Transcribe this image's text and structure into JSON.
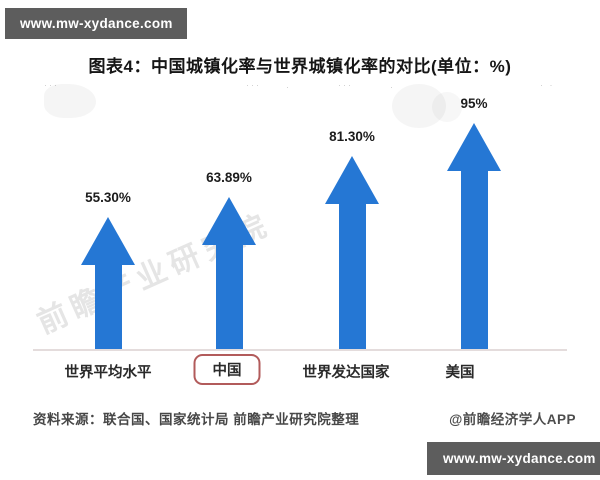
{
  "banners": {
    "top_text": "www.mw-xydance.com",
    "bottom_text": "www.mw-xydance.com",
    "bg_color": "#5d5d5d"
  },
  "title": "图表4：中国城镇化率与世界城镇化率的对比(单位：%)",
  "chart_data": {
    "type": "bar",
    "variant": "upward-arrow-pictogram",
    "title": "图表4：中国城镇化率与世界城镇化率的对比(单位：%)",
    "unit": "%",
    "categories": [
      "世界平均水平",
      "中国",
      "世界发达国家",
      "美国"
    ],
    "values": [
      55.3,
      63.89,
      81.3,
      95
    ],
    "value_labels": [
      "55.30%",
      "63.89%",
      "81.30%",
      "95%"
    ],
    "highlighted_category": "中国",
    "highlight_box_color": "#b25b5b",
    "bar_color": "#2577d4",
    "ylim": [
      0,
      100
    ],
    "grid": false,
    "legend": "none"
  },
  "watermark": {
    "diagonal_text": "前瞻产业研究院"
  },
  "footer": {
    "source": "资料来源：联合国、国家统计局 前瞻产业研究院整理",
    "credit": "@前瞻经济学人APP"
  }
}
